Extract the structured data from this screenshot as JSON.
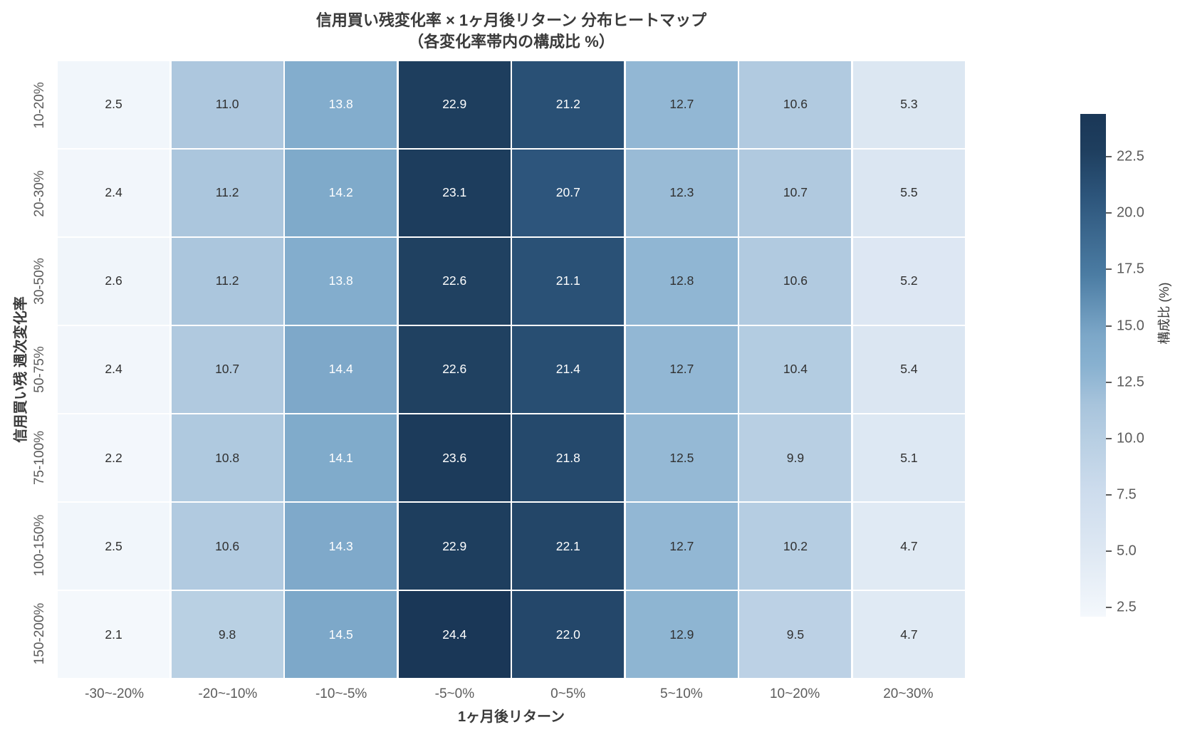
{
  "title": {
    "line1": "信用買い残変化率 × 1ヶ月後リターン 分布ヒートマップ",
    "line2": "（各変化率帯内の構成比 %）"
  },
  "chart_data": {
    "type": "heatmap",
    "title": "信用買い残変化率 × 1ヶ月後リターン 分布ヒートマップ（各変化率帯内の構成比 %）",
    "xlabel": "1ヶ月後リターン",
    "ylabel": "信用買い残 週次変化率",
    "x_categories": [
      "-30~-20%",
      "-20~-10%",
      "-10~-5%",
      "-5~0%",
      "0~5%",
      "5~10%",
      "10~20%",
      "20~30%"
    ],
    "y_categories": [
      "10-20%",
      "20-30%",
      "30-50%",
      "50-75%",
      "75-100%",
      "100-150%",
      "150-200%"
    ],
    "values": [
      [
        2.5,
        11.0,
        13.8,
        22.9,
        21.2,
        12.7,
        10.6,
        5.3
      ],
      [
        2.4,
        11.2,
        14.2,
        23.1,
        20.7,
        12.3,
        10.7,
        5.5
      ],
      [
        2.6,
        11.2,
        13.8,
        22.6,
        21.1,
        12.8,
        10.6,
        5.2
      ],
      [
        2.4,
        10.7,
        14.4,
        22.6,
        21.4,
        12.7,
        10.4,
        5.4
      ],
      [
        2.2,
        10.8,
        14.1,
        23.6,
        21.8,
        12.5,
        9.9,
        5.1
      ],
      [
        2.5,
        10.6,
        14.3,
        22.9,
        22.1,
        12.7,
        10.2,
        4.7
      ],
      [
        2.1,
        9.8,
        14.5,
        24.4,
        22.0,
        12.9,
        9.5,
        4.7
      ]
    ],
    "value_format": "0.1f",
    "grid": false,
    "legend_position": "right",
    "colorbar": {
      "label": "構成比 (%)",
      "ticks": [
        22.5,
        20.0,
        17.5,
        15.0,
        12.5,
        10.0,
        7.5,
        5.0,
        2.5
      ],
      "vmin": 2.1,
      "vmax": 24.4
    },
    "colors": {
      "background": "#ffffff",
      "cell_divider": "#ffffff",
      "title_text": "#3a3a3a",
      "tick_label": "#5c5c5c",
      "annotation_dark": "#303030",
      "annotation_light": "#ffffff",
      "scale_stops": [
        [
          0.0,
          [
            244,
            248,
            252
          ]
        ],
        [
          0.13,
          [
            222,
            232,
            243
          ]
        ],
        [
          0.25,
          [
            205,
            220,
            237
          ]
        ],
        [
          0.35,
          [
            184,
            207,
            227
          ]
        ],
        [
          0.42,
          [
            168,
            196,
            220
          ]
        ],
        [
          0.5,
          [
            136,
            177,
            208
          ]
        ],
        [
          0.56,
          [
            124,
            167,
            200
          ]
        ],
        [
          0.68,
          [
            75,
            124,
            163
          ]
        ],
        [
          0.84,
          [
            44,
            84,
            122
          ]
        ],
        [
          0.93,
          [
            30,
            62,
            94
          ]
        ],
        [
          1.0,
          [
            26,
            55,
            87
          ]
        ]
      ]
    }
  }
}
